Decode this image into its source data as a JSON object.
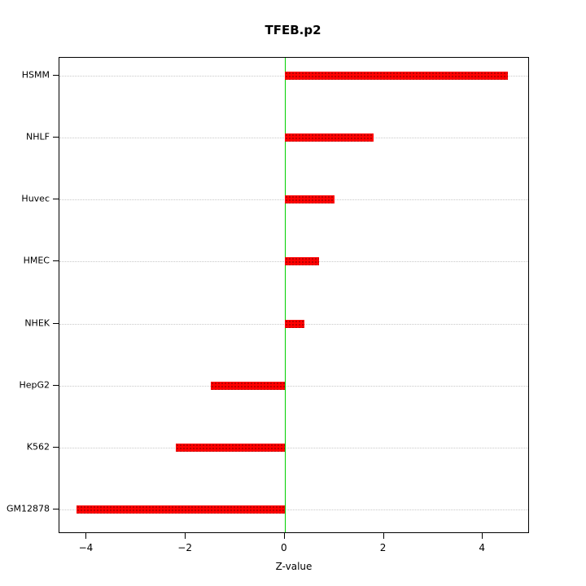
{
  "title": "TFEB.p2",
  "chart_data": {
    "type": "bar",
    "orientation": "horizontal",
    "title": "TFEB.p2",
    "xlabel": "Z-value",
    "ylabel": "",
    "categories": [
      "HSMM",
      "NHLF",
      "Huvec",
      "HMEC",
      "NHEK",
      "HepG2",
      "K562",
      "GM12878"
    ],
    "values": [
      4.5,
      1.8,
      1.0,
      0.7,
      0.4,
      -1.5,
      -2.2,
      -4.2
    ],
    "xlim": [
      -4.55,
      4.95
    ],
    "xticks": [
      -4,
      -2,
      0,
      2,
      4
    ],
    "grid": true,
    "legend": "none",
    "colors": {
      "bar": "#ff0000",
      "bar_dot": "#a00000",
      "zero_line": "#00d000",
      "grid": "#c8c8c8",
      "axis": "#000000",
      "background": "#ffffff"
    }
  }
}
